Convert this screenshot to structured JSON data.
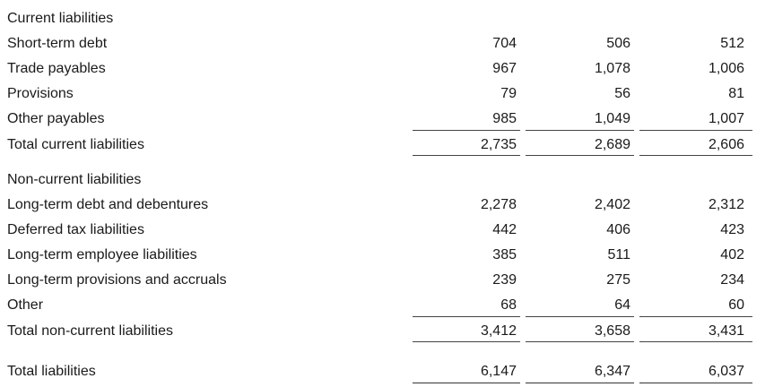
{
  "current": {
    "heading": "Current liabilities",
    "rows": [
      {
        "label": "Short-term debt",
        "v1": "704",
        "v2": "506",
        "v3": "512"
      },
      {
        "label": "Trade payables",
        "v1": "967",
        "v2": "1,078",
        "v3": "1,006"
      },
      {
        "label": "Provisions",
        "v1": "79",
        "v2": "56",
        "v3": "81"
      },
      {
        "label": "Other payables",
        "v1": "985",
        "v2": "1,049",
        "v3": "1,007"
      }
    ],
    "total": {
      "label": "Total current liabilities",
      "v1": "2,735",
      "v2": "2,689",
      "v3": "2,606"
    }
  },
  "noncurrent": {
    "heading": "Non-current liabilities",
    "rows": [
      {
        "label": "Long-term debt and debentures",
        "v1": "2,278",
        "v2": "2,402",
        "v3": "2,312"
      },
      {
        "label": "Deferred tax liabilities",
        "v1": "442",
        "v2": "406",
        "v3": "423"
      },
      {
        "label": "Long-term employee liabilities",
        "v1": "385",
        "v2": "511",
        "v3": "402"
      },
      {
        "label": "Long-term provisions and accruals",
        "v1": "239",
        "v2": "275",
        "v3": "234"
      },
      {
        "label": "Other",
        "v1": "68",
        "v2": "64",
        "v3": "60"
      }
    ],
    "total": {
      "label": "Total non-current liabilities",
      "v1": "3,412",
      "v2": "3,658",
      "v3": "3,431"
    }
  },
  "grand_total": {
    "label": "Total liabilities",
    "v1": "6,147",
    "v2": "6,347",
    "v3": "6,037"
  }
}
